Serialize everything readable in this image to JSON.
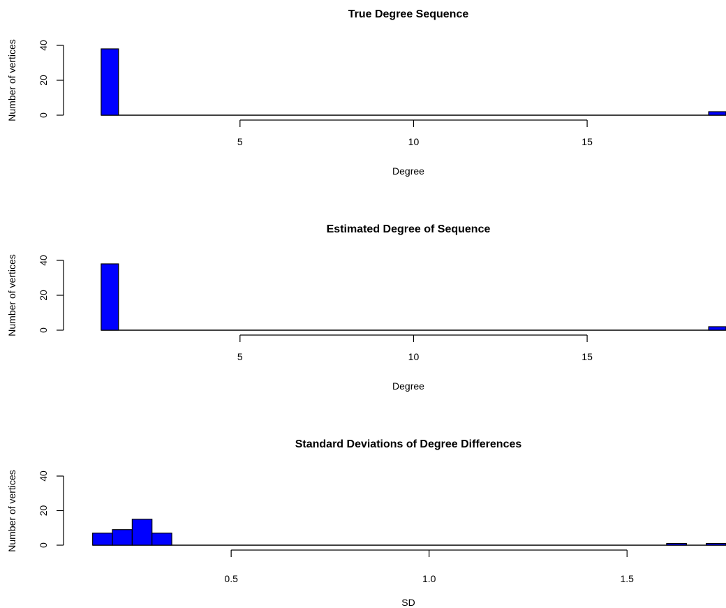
{
  "chart_data": [
    {
      "type": "bar",
      "title": "True Degree Sequence",
      "xlabel": "Degree",
      "ylabel": "Number of vertices",
      "bar_color": "#0000ff",
      "x_ticks": [
        5,
        10,
        15
      ],
      "y_ticks": [
        0,
        20,
        40
      ],
      "xlim": [
        0.64,
        19
      ],
      "ylim": [
        0,
        40
      ],
      "grid": false,
      "series": [
        {
          "values": [
            {
              "x0": 1.0,
              "x1": 1.5,
              "count": 38
            },
            {
              "x0": 18.5,
              "x1": 19.0,
              "count": 2
            }
          ]
        }
      ]
    },
    {
      "type": "bar",
      "title": "Estimated Degree of Sequence",
      "xlabel": "Degree",
      "ylabel": "Number of vertices",
      "bar_color": "#0000ff",
      "x_ticks": [
        5,
        10,
        15
      ],
      "y_ticks": [
        0,
        20,
        40
      ],
      "xlim": [
        0.64,
        19
      ],
      "ylim": [
        0,
        40
      ],
      "grid": false,
      "series": [
        {
          "values": [
            {
              "x0": 1.0,
              "x1": 1.5,
              "count": 38
            },
            {
              "x0": 18.5,
              "x1": 19.0,
              "count": 2
            }
          ]
        }
      ]
    },
    {
      "type": "bar",
      "title": "Standard Deviations of Degree Differences",
      "xlabel": "SD",
      "ylabel": "Number of vertices",
      "bar_color": "#0000ff",
      "x_ticks": [
        "0.5",
        "1.0",
        "1.5"
      ],
      "y_ticks": [
        0,
        20,
        40
      ],
      "xlim": [
        0.14,
        1.75
      ],
      "ylim": [
        0,
        40
      ],
      "grid": false,
      "series": [
        {
          "values": [
            {
              "x0": 0.15,
              "x1": 0.2,
              "count": 7
            },
            {
              "x0": 0.2,
              "x1": 0.25,
              "count": 9
            },
            {
              "x0": 0.25,
              "x1": 0.3,
              "count": 15
            },
            {
              "x0": 0.3,
              "x1": 0.35,
              "count": 7
            },
            {
              "x0": 1.6,
              "x1": 1.65,
              "count": 1
            },
            {
              "x0": 1.7,
              "x1": 1.75,
              "count": 1
            }
          ]
        }
      ]
    }
  ]
}
